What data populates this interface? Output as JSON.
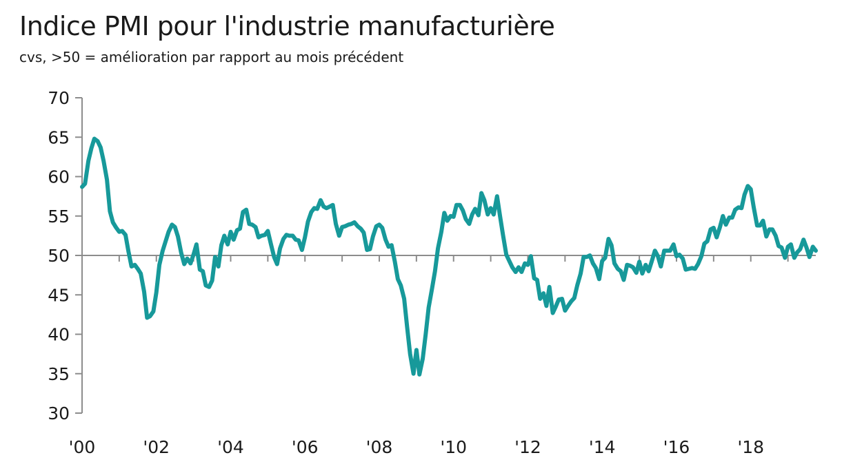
{
  "chart_data": {
    "type": "line",
    "title": "Indice PMI pour l'industrie manufacturière",
    "subtitle": "cvs, >50 = amélioration par rapport au mois précédent",
    "xlabel": "",
    "ylabel": "",
    "ylim": [
      30,
      70
    ],
    "xlim": [
      2000.0,
      2019.75
    ],
    "y_ticks": [
      30,
      35,
      40,
      45,
      50,
      55,
      60,
      65,
      70
    ],
    "x_ticks": [
      {
        "value": 2000,
        "label": "'00"
      },
      {
        "value": 2002,
        "label": "'02"
      },
      {
        "value": 2004,
        "label": "'04"
      },
      {
        "value": 2006,
        "label": "'06"
      },
      {
        "value": 2008,
        "label": "'08"
      },
      {
        "value": 2010,
        "label": "'10"
      },
      {
        "value": 2012,
        "label": "'12"
      },
      {
        "value": 2014,
        "label": "'14"
      },
      {
        "value": 2016,
        "label": "'16"
      },
      {
        "value": 2018,
        "label": "'18"
      }
    ],
    "reference_line": 50,
    "grid": false,
    "line_color": "#17999a",
    "axis_color": "#8c8c8c",
    "series": [
      {
        "values": [
          [
            2000.0,
            58.7
          ],
          [
            2000.08,
            59.1
          ],
          [
            2000.17,
            62.0
          ],
          [
            2000.25,
            63.6
          ],
          [
            2000.33,
            64.8
          ],
          [
            2000.42,
            64.5
          ],
          [
            2000.5,
            63.7
          ],
          [
            2000.58,
            62.0
          ],
          [
            2000.67,
            59.6
          ],
          [
            2000.75,
            55.6
          ],
          [
            2000.83,
            54.2
          ],
          [
            2000.92,
            53.5
          ],
          [
            2001.0,
            53.0
          ],
          [
            2001.08,
            53.1
          ],
          [
            2001.17,
            52.6
          ],
          [
            2001.25,
            50.5
          ],
          [
            2001.33,
            48.6
          ],
          [
            2001.42,
            48.8
          ],
          [
            2001.5,
            48.3
          ],
          [
            2001.58,
            47.7
          ],
          [
            2001.67,
            45.4
          ],
          [
            2001.75,
            42.1
          ],
          [
            2001.83,
            42.3
          ],
          [
            2001.92,
            42.9
          ],
          [
            2002.0,
            45.3
          ],
          [
            2002.08,
            48.8
          ],
          [
            2002.17,
            50.6
          ],
          [
            2002.25,
            51.8
          ],
          [
            2002.33,
            53.0
          ],
          [
            2002.42,
            53.9
          ],
          [
            2002.5,
            53.6
          ],
          [
            2002.58,
            52.4
          ],
          [
            2002.67,
            50.3
          ],
          [
            2002.75,
            48.9
          ],
          [
            2002.83,
            49.6
          ],
          [
            2002.92,
            49.0
          ],
          [
            2003.0,
            50.1
          ],
          [
            2003.08,
            51.4
          ],
          [
            2003.17,
            48.2
          ],
          [
            2003.25,
            48.0
          ],
          [
            2003.33,
            46.2
          ],
          [
            2003.42,
            46.0
          ],
          [
            2003.5,
            46.8
          ],
          [
            2003.58,
            49.8
          ],
          [
            2003.67,
            48.6
          ],
          [
            2003.75,
            51.3
          ],
          [
            2003.83,
            52.5
          ],
          [
            2003.92,
            51.4
          ],
          [
            2004.0,
            53.0
          ],
          [
            2004.08,
            52.0
          ],
          [
            2004.17,
            53.2
          ],
          [
            2004.25,
            53.4
          ],
          [
            2004.33,
            55.5
          ],
          [
            2004.42,
            55.8
          ],
          [
            2004.5,
            54.0
          ],
          [
            2004.58,
            53.9
          ],
          [
            2004.67,
            53.6
          ],
          [
            2004.75,
            52.3
          ],
          [
            2004.83,
            52.5
          ],
          [
            2004.92,
            52.6
          ],
          [
            2005.0,
            53.1
          ],
          [
            2005.08,
            51.5
          ],
          [
            2005.17,
            49.8
          ],
          [
            2005.25,
            48.9
          ],
          [
            2005.33,
            50.9
          ],
          [
            2005.42,
            52.1
          ],
          [
            2005.5,
            52.6
          ],
          [
            2005.58,
            52.5
          ],
          [
            2005.67,
            52.5
          ],
          [
            2005.75,
            52.0
          ],
          [
            2005.83,
            51.9
          ],
          [
            2005.92,
            50.7
          ],
          [
            2006.0,
            52.3
          ],
          [
            2006.08,
            54.3
          ],
          [
            2006.17,
            55.5
          ],
          [
            2006.25,
            56.0
          ],
          [
            2006.33,
            55.9
          ],
          [
            2006.42,
            57.0
          ],
          [
            2006.5,
            56.2
          ],
          [
            2006.58,
            56.0
          ],
          [
            2006.67,
            56.2
          ],
          [
            2006.75,
            56.4
          ],
          [
            2006.83,
            54.0
          ],
          [
            2006.92,
            52.5
          ],
          [
            2007.0,
            53.6
          ],
          [
            2007.08,
            53.7
          ],
          [
            2007.17,
            53.9
          ],
          [
            2007.25,
            54.0
          ],
          [
            2007.33,
            54.2
          ],
          [
            2007.42,
            53.7
          ],
          [
            2007.5,
            53.4
          ],
          [
            2007.58,
            52.9
          ],
          [
            2007.67,
            50.7
          ],
          [
            2007.75,
            50.8
          ],
          [
            2007.83,
            52.4
          ],
          [
            2007.92,
            53.7
          ],
          [
            2008.0,
            53.9
          ],
          [
            2008.08,
            53.5
          ],
          [
            2008.17,
            52.0
          ],
          [
            2008.25,
            51.1
          ],
          [
            2008.33,
            51.3
          ],
          [
            2008.42,
            49.2
          ],
          [
            2008.5,
            47.0
          ],
          [
            2008.58,
            46.2
          ],
          [
            2008.67,
            44.5
          ],
          [
            2008.75,
            40.9
          ],
          [
            2008.83,
            37.5
          ],
          [
            2008.92,
            35.0
          ],
          [
            2009.0,
            38.0
          ],
          [
            2009.08,
            34.9
          ],
          [
            2009.17,
            36.9
          ],
          [
            2009.25,
            40.0
          ],
          [
            2009.33,
            43.4
          ],
          [
            2009.42,
            45.8
          ],
          [
            2009.5,
            48.0
          ],
          [
            2009.58,
            50.9
          ],
          [
            2009.67,
            53.0
          ],
          [
            2009.75,
            55.4
          ],
          [
            2009.83,
            54.4
          ],
          [
            2009.92,
            55.0
          ],
          [
            2010.0,
            54.9
          ],
          [
            2010.08,
            56.4
          ],
          [
            2010.17,
            56.4
          ],
          [
            2010.25,
            55.7
          ],
          [
            2010.33,
            54.6
          ],
          [
            2010.42,
            54.0
          ],
          [
            2010.5,
            55.2
          ],
          [
            2010.58,
            55.9
          ],
          [
            2010.67,
            55.1
          ],
          [
            2010.75,
            57.9
          ],
          [
            2010.83,
            57.0
          ],
          [
            2010.92,
            55.2
          ],
          [
            2011.0,
            56.0
          ],
          [
            2011.08,
            55.2
          ],
          [
            2011.17,
            57.5
          ],
          [
            2011.25,
            55.0
          ],
          [
            2011.33,
            52.6
          ],
          [
            2011.42,
            50.1
          ],
          [
            2011.5,
            49.3
          ],
          [
            2011.58,
            48.5
          ],
          [
            2011.67,
            47.9
          ],
          [
            2011.75,
            48.5
          ],
          [
            2011.83,
            47.9
          ],
          [
            2011.92,
            49.0
          ],
          [
            2012.0,
            48.8
          ],
          [
            2012.08,
            49.9
          ],
          [
            2012.17,
            47.1
          ],
          [
            2012.25,
            46.9
          ],
          [
            2012.33,
            44.5
          ],
          [
            2012.42,
            45.2
          ],
          [
            2012.5,
            43.6
          ],
          [
            2012.58,
            46.0
          ],
          [
            2012.67,
            42.7
          ],
          [
            2012.75,
            43.5
          ],
          [
            2012.83,
            44.4
          ],
          [
            2012.92,
            44.5
          ],
          [
            2013.0,
            43.0
          ],
          [
            2013.08,
            43.6
          ],
          [
            2013.17,
            44.2
          ],
          [
            2013.25,
            44.6
          ],
          [
            2013.33,
            46.2
          ],
          [
            2013.42,
            47.7
          ],
          [
            2013.5,
            49.8
          ],
          [
            2013.58,
            49.8
          ],
          [
            2013.67,
            50.0
          ],
          [
            2013.75,
            49.0
          ],
          [
            2013.83,
            48.4
          ],
          [
            2013.92,
            47.0
          ],
          [
            2014.0,
            49.3
          ],
          [
            2014.08,
            49.7
          ],
          [
            2014.17,
            52.1
          ],
          [
            2014.25,
            51.3
          ],
          [
            2014.33,
            49.0
          ],
          [
            2014.42,
            48.3
          ],
          [
            2014.5,
            48.0
          ],
          [
            2014.58,
            46.9
          ],
          [
            2014.67,
            48.8
          ],
          [
            2014.75,
            48.7
          ],
          [
            2014.83,
            48.5
          ],
          [
            2014.92,
            47.8
          ],
          [
            2015.0,
            49.2
          ],
          [
            2015.08,
            47.7
          ],
          [
            2015.17,
            48.8
          ],
          [
            2015.25,
            48.0
          ],
          [
            2015.33,
            49.2
          ],
          [
            2015.42,
            50.6
          ],
          [
            2015.5,
            49.9
          ],
          [
            2015.58,
            48.6
          ],
          [
            2015.67,
            50.6
          ],
          [
            2015.75,
            50.6
          ],
          [
            2015.83,
            50.6
          ],
          [
            2015.92,
            51.4
          ],
          [
            2016.0,
            49.9
          ],
          [
            2016.08,
            50.1
          ],
          [
            2016.17,
            49.6
          ],
          [
            2016.25,
            48.2
          ],
          [
            2016.33,
            48.3
          ],
          [
            2016.42,
            48.4
          ],
          [
            2016.5,
            48.3
          ],
          [
            2016.58,
            48.9
          ],
          [
            2016.67,
            49.9
          ],
          [
            2016.75,
            51.5
          ],
          [
            2016.83,
            51.8
          ],
          [
            2016.92,
            53.3
          ],
          [
            2017.0,
            53.5
          ],
          [
            2017.08,
            52.3
          ],
          [
            2017.17,
            53.6
          ],
          [
            2017.25,
            55.0
          ],
          [
            2017.33,
            53.9
          ],
          [
            2017.42,
            54.8
          ],
          [
            2017.5,
            54.8
          ],
          [
            2017.58,
            55.8
          ],
          [
            2017.67,
            56.1
          ],
          [
            2017.75,
            56.0
          ],
          [
            2017.83,
            57.7
          ],
          [
            2017.92,
            58.8
          ],
          [
            2018.0,
            58.4
          ],
          [
            2018.08,
            56.1
          ],
          [
            2018.17,
            53.8
          ],
          [
            2018.25,
            53.8
          ],
          [
            2018.33,
            54.4
          ],
          [
            2018.42,
            52.4
          ],
          [
            2018.5,
            53.3
          ],
          [
            2018.58,
            53.3
          ],
          [
            2018.67,
            52.5
          ],
          [
            2018.75,
            51.2
          ],
          [
            2018.83,
            51.0
          ],
          [
            2018.92,
            49.7
          ],
          [
            2019.0,
            51.1
          ],
          [
            2019.08,
            51.4
          ],
          [
            2019.17,
            49.7
          ],
          [
            2019.25,
            50.4
          ],
          [
            2019.33,
            50.8
          ],
          [
            2019.42,
            52.0
          ],
          [
            2019.5,
            51.0
          ],
          [
            2019.58,
            49.8
          ],
          [
            2019.67,
            51.1
          ],
          [
            2019.75,
            50.6
          ]
        ]
      }
    ]
  }
}
